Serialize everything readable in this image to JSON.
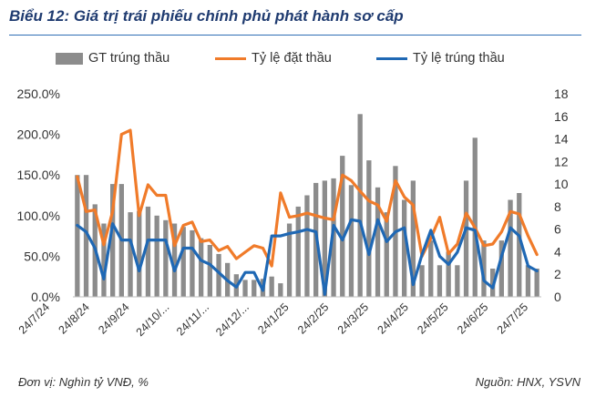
{
  "title": "Biểu 12: Giá trị trái phiếu chính phủ phát hành sơ cấp",
  "footer_left": "Đơn vị: Nghìn tỷ VNĐ, %",
  "footer_right": "Nguồn: HNX, YSVN",
  "colors": {
    "bar": "#8c8c8c",
    "dat": "#f07b2a",
    "trung": "#1f68b4",
    "title": "#1f3b70"
  },
  "chart_data": {
    "type": "bar",
    "title": "Biểu 12: Giá trị trái phiếu chính phủ phát hành sơ cấp",
    "legend": [
      "GT trúng thầu",
      "Tỷ lệ đặt thầu",
      "Tỷ lệ trúng thầu"
    ],
    "legend_position": "top",
    "x_ticks": [
      "24/7/24",
      "24/8/24",
      "24/9/24",
      "24/10/...",
      "24/11/...",
      "24/12/...",
      "24/1/25",
      "24/2/25",
      "24/3/25",
      "24/4/25",
      "24/5/25",
      "24/6/25",
      "24/7/25"
    ],
    "y_left": {
      "label": "",
      "ticks": [
        "0.0%",
        "50.0%",
        "100.0%",
        "150.0%",
        "200.0%",
        "250.0%"
      ],
      "range": [
        0,
        250
      ]
    },
    "y_right": {
      "label": "",
      "ticks": [
        "0",
        "2",
        "4",
        "6",
        "8",
        "10",
        "12",
        "14",
        "16",
        "18"
      ],
      "range": [
        0,
        18
      ]
    },
    "series": [
      {
        "name": "GT trúng thầu",
        "type": "bar",
        "axis": "right",
        "values": [
          10.8,
          10.8,
          8.2,
          6.5,
          10.0,
          10.0,
          7.5,
          7.6,
          8.0,
          7.2,
          6.8,
          6.5,
          6.2,
          5.9,
          5.2,
          4.6,
          3.8,
          3.0,
          2.0,
          1.5,
          1.5,
          1.6,
          1.8,
          1.2,
          6.5,
          8.0,
          9.0,
          10.1,
          10.3,
          10.5,
          12.5,
          9.9,
          16.2,
          12.1,
          9.7,
          7.5,
          11.6,
          8.6,
          10.3,
          2.8,
          5.0,
          2.8,
          4.0,
          2.8,
          10.3,
          14.1,
          5.0,
          2.5,
          5.0,
          8.6,
          9.2,
          2.8,
          2.5
        ]
      },
      {
        "name": "Tỷ lệ đặt thầu",
        "type": "line",
        "axis": "left",
        "values": [
          148,
          105,
          107,
          64,
          105,
          200,
          205,
          100,
          138,
          125,
          125,
          63,
          88,
          92,
          68,
          70,
          57,
          62,
          47,
          55,
          63,
          60,
          38,
          128,
          98,
          100,
          103,
          100,
          97,
          95,
          150,
          143,
          130,
          118,
          113,
          93,
          143,
          123,
          113,
          50,
          72,
          98,
          53,
          65,
          103,
          85,
          63,
          65,
          80,
          105,
          102,
          75,
          52
        ]
      },
      {
        "name": "Tỷ lệ trúng thầu",
        "type": "line",
        "axis": "left",
        "values": [
          88,
          80,
          60,
          22,
          90,
          70,
          70,
          32,
          70,
          70,
          70,
          32,
          60,
          60,
          45,
          40,
          30,
          20,
          12,
          30,
          30,
          8,
          75,
          75,
          78,
          80,
          83,
          80,
          3,
          88,
          70,
          95,
          93,
          52,
          95,
          68,
          80,
          85,
          15,
          52,
          82,
          50,
          40,
          55,
          85,
          82,
          20,
          11,
          50,
          85,
          75,
          38,
          32
        ]
      }
    ]
  }
}
